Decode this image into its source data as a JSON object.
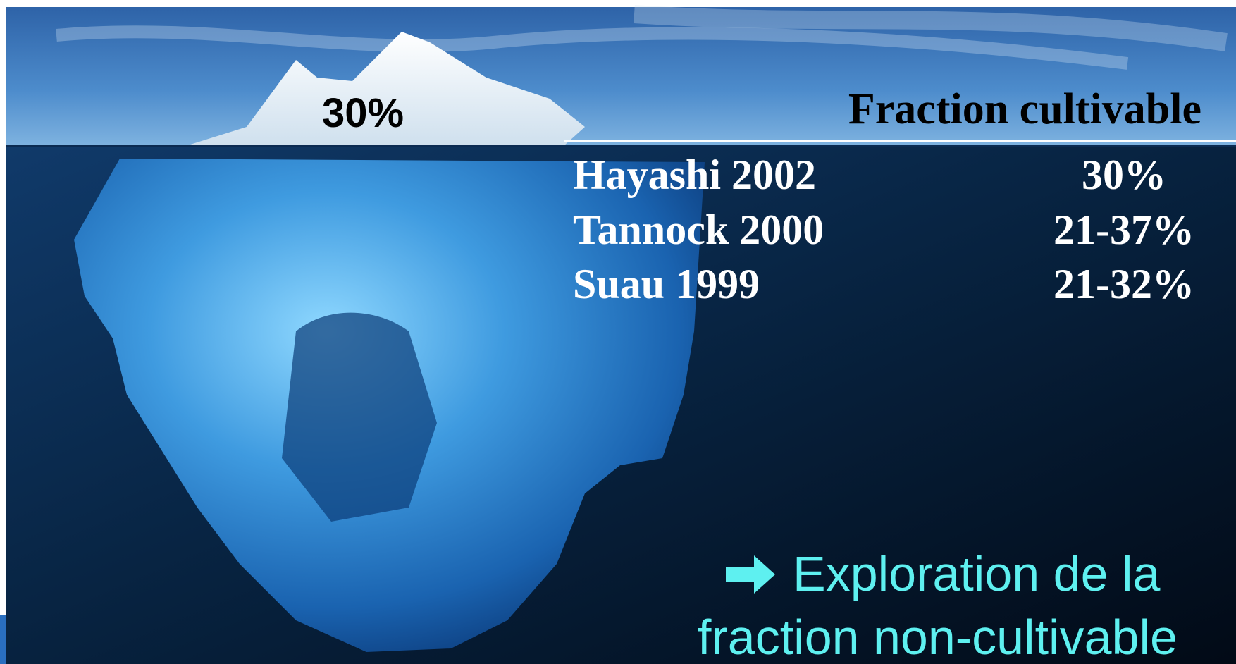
{
  "iceberg_label": "30%",
  "table": {
    "header": "Fraction cultivable",
    "rows": [
      [
        "Hayashi 2002",
        "30%"
      ],
      [
        "Tannock 2000",
        "21-37%"
      ],
      [
        "Suau 1999",
        "21-32%"
      ]
    ]
  },
  "conclusion": {
    "lines": [
      "Exploration de la",
      "fraction non-cultivable"
    ]
  }
}
